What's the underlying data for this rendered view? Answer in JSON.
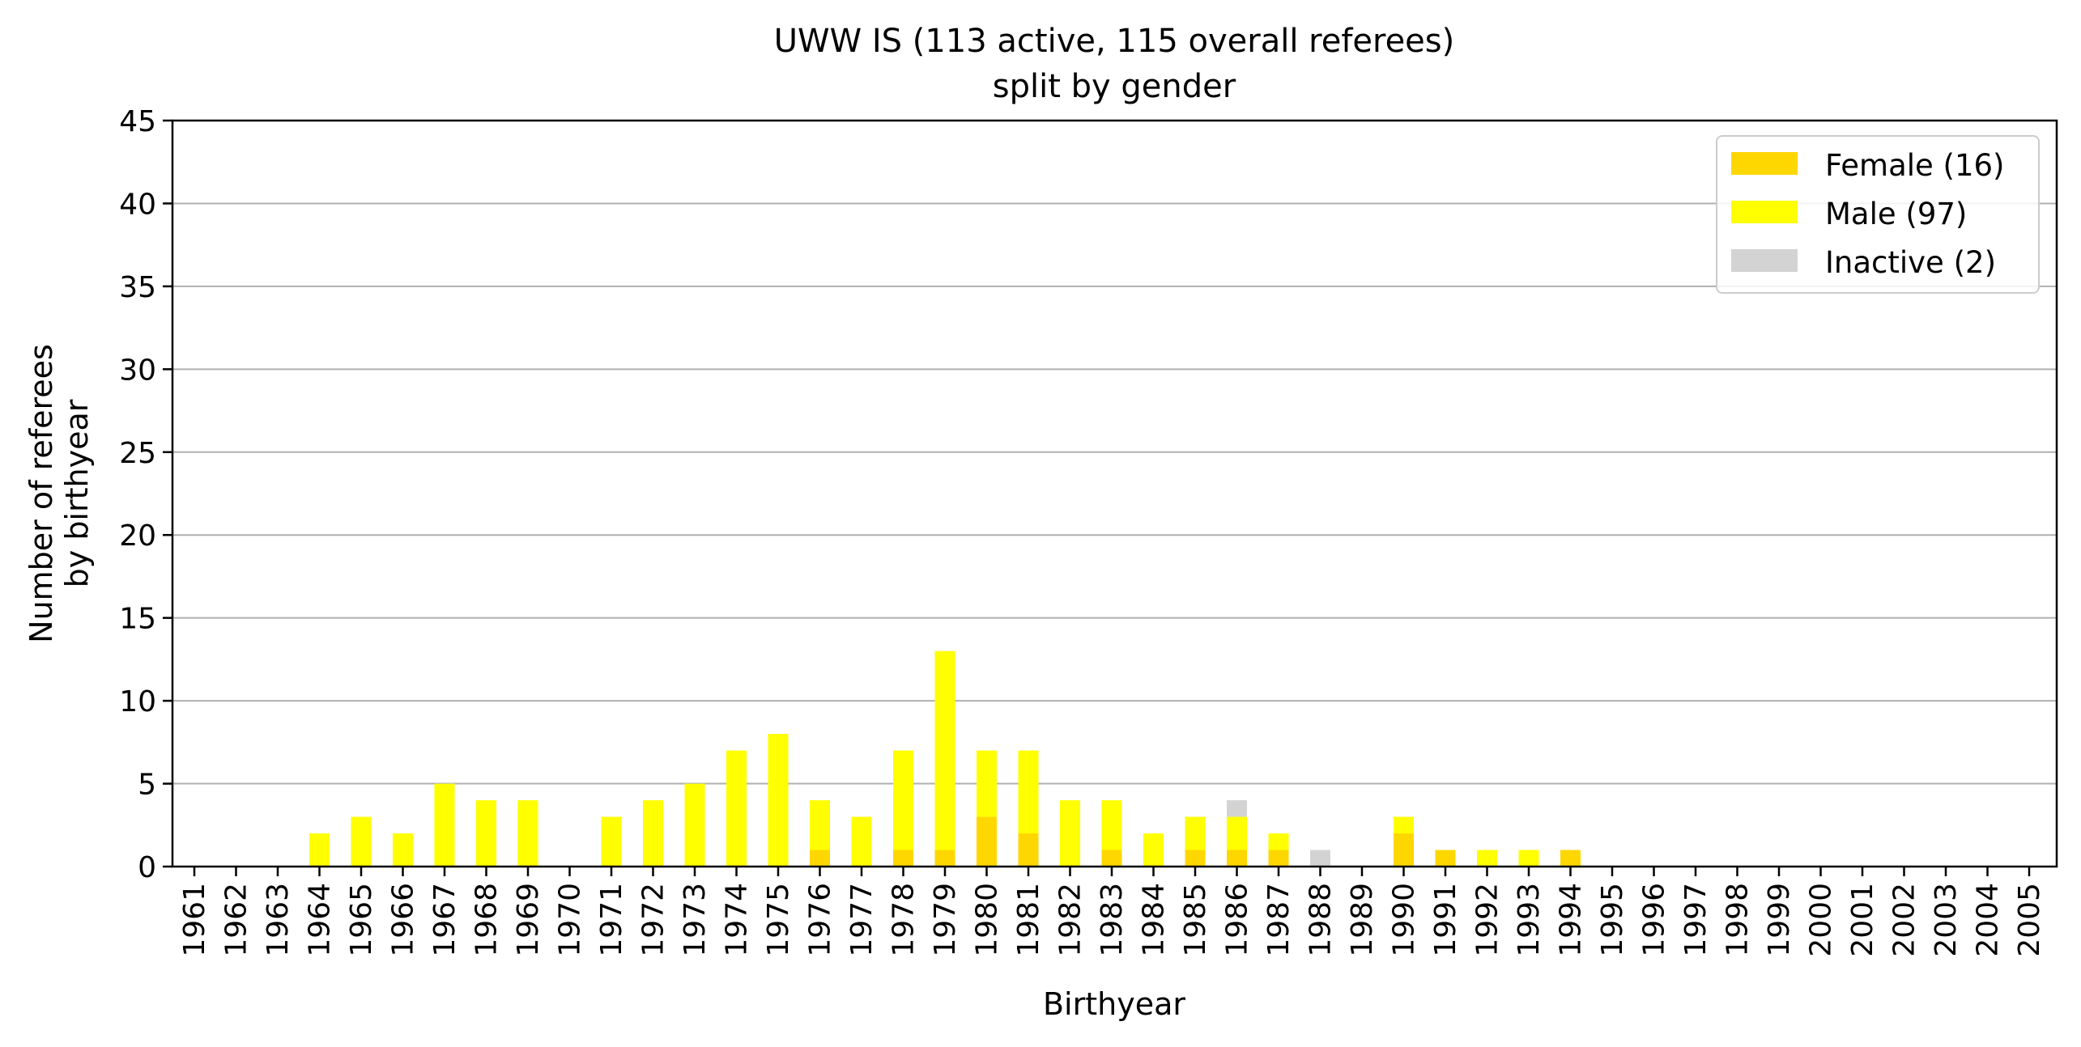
{
  "chart_data": {
    "type": "bar",
    "stacked": true,
    "title": "UWW IS (113 active, 115 overall referees)",
    "subtitle": "split by gender",
    "xlabel": "Birthyear",
    "ylabel_line1": "Number of referees",
    "ylabel_line2": "by birthyear",
    "ylim": [
      0,
      45
    ],
    "yticks": [
      "0",
      "5",
      "10",
      "15",
      "20",
      "25",
      "30",
      "35",
      "40",
      "45"
    ],
    "grid": "horizontal",
    "legend_position": "top-right",
    "categories": [
      "1961",
      "1962",
      "1963",
      "1964",
      "1965",
      "1966",
      "1967",
      "1968",
      "1969",
      "1970",
      "1971",
      "1972",
      "1973",
      "1974",
      "1975",
      "1976",
      "1977",
      "1978",
      "1979",
      "1980",
      "1981",
      "1982",
      "1983",
      "1984",
      "1985",
      "1986",
      "1987",
      "1988",
      "1989",
      "1990",
      "1991",
      "1992",
      "1993",
      "1994",
      "1995",
      "1996",
      "1997",
      "1998",
      "1999",
      "2000",
      "2001",
      "2002",
      "2003",
      "2004",
      "2005"
    ],
    "series": [
      {
        "name": "Female (16)",
        "color": "#FFD700",
        "values": [
          0,
          0,
          0,
          0,
          0,
          0,
          0,
          0,
          0,
          0,
          0,
          0,
          0,
          0,
          0,
          1,
          0,
          1,
          1,
          3,
          2,
          0,
          1,
          0,
          1,
          1,
          1,
          0,
          0,
          2,
          1,
          0,
          0,
          1,
          0,
          0,
          0,
          0,
          0,
          0,
          0,
          0,
          0,
          0,
          0
        ]
      },
      {
        "name": "Male (97)",
        "color": "#FFFF00",
        "values": [
          0,
          0,
          0,
          2,
          3,
          2,
          5,
          4,
          4,
          0,
          3,
          4,
          5,
          7,
          8,
          3,
          3,
          6,
          12,
          4,
          5,
          4,
          3,
          2,
          2,
          2,
          1,
          0,
          0,
          1,
          0,
          1,
          1,
          0,
          0,
          0,
          0,
          0,
          0,
          0,
          0,
          0,
          0,
          0,
          0
        ]
      },
      {
        "name": "Inactive (2)",
        "color": "#D3D3D3",
        "values": [
          0,
          0,
          0,
          0,
          0,
          0,
          0,
          0,
          0,
          0,
          0,
          0,
          0,
          0,
          0,
          0,
          0,
          0,
          0,
          0,
          0,
          0,
          0,
          0,
          0,
          1,
          0,
          1,
          0,
          0,
          0,
          0,
          0,
          0,
          0,
          0,
          0,
          0,
          0,
          0,
          0,
          0,
          0,
          0,
          0
        ]
      }
    ]
  }
}
